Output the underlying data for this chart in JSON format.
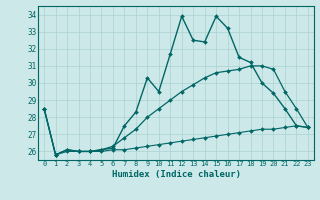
{
  "xlabel": "Humidex (Indice chaleur)",
  "background_color": "#cce8e8",
  "grid_color": "#b0d4d4",
  "line_color": "#006666",
  "xlim": [
    -0.5,
    23.5
  ],
  "ylim": [
    25.5,
    34.5
  ],
  "yticks": [
    26,
    27,
    28,
    29,
    30,
    31,
    32,
    33,
    34
  ],
  "xticks": [
    0,
    1,
    2,
    3,
    4,
    5,
    6,
    7,
    8,
    9,
    10,
    11,
    12,
    13,
    14,
    15,
    16,
    17,
    18,
    19,
    20,
    21,
    22,
    23
  ],
  "lines": [
    {
      "x": [
        0,
        1,
        2,
        3,
        4,
        5,
        6,
        7,
        8,
        9,
        10,
        11,
        12,
        13,
        14,
        15,
        16,
        17,
        18,
        19,
        20,
        21,
        22,
        23
      ],
      "y": [
        28.5,
        25.8,
        26.1,
        26.0,
        26.0,
        26.1,
        26.2,
        27.5,
        28.3,
        30.3,
        29.5,
        31.7,
        33.9,
        32.5,
        32.4,
        33.9,
        33.2,
        31.5,
        31.2,
        30.0,
        29.4,
        28.5,
        27.5,
        27.4
      ],
      "color": "#006666",
      "linewidth": 1.0,
      "marker": "D",
      "markersize": 2.0
    },
    {
      "x": [
        0,
        1,
        2,
        3,
        4,
        5,
        6,
        7,
        8,
        9,
        10,
        11,
        12,
        13,
        14,
        15,
        16,
        17,
        18,
        19,
        20,
        21,
        22,
        23
      ],
      "y": [
        28.5,
        25.8,
        26.1,
        26.0,
        26.0,
        26.1,
        26.3,
        26.8,
        27.3,
        28.0,
        28.5,
        29.0,
        29.5,
        29.9,
        30.3,
        30.6,
        30.7,
        30.8,
        31.0,
        31.0,
        30.8,
        29.5,
        28.5,
        27.4
      ],
      "color": "#006666",
      "linewidth": 0.9,
      "marker": "D",
      "markersize": 2.0
    },
    {
      "x": [
        0,
        1,
        2,
        3,
        4,
        5,
        6,
        7,
        8,
        9,
        10,
        11,
        12,
        13,
        14,
        15,
        16,
        17,
        18,
        19,
        20,
        21,
        22,
        23
      ],
      "y": [
        28.5,
        25.8,
        26.0,
        26.0,
        26.0,
        26.0,
        26.1,
        26.1,
        26.2,
        26.3,
        26.4,
        26.5,
        26.6,
        26.7,
        26.8,
        26.9,
        27.0,
        27.1,
        27.2,
        27.3,
        27.3,
        27.4,
        27.5,
        27.4
      ],
      "color": "#006666",
      "linewidth": 0.8,
      "marker": "D",
      "markersize": 2.0
    }
  ]
}
